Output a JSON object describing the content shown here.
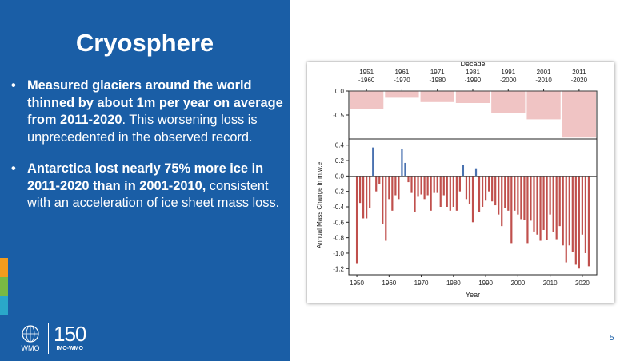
{
  "slide": {
    "title": "Cryosphere",
    "page_number": "5",
    "bullets": [
      {
        "bold": "Measured glaciers around the world thinned by about 1m per year on average from 2011-2020",
        "normal": ". This worsening loss is unprecedented in the observed record."
      },
      {
        "bold": "Antarctica lost nearly 75% more ice in 2011-2020 than in  2001-2010,",
        "normal": " consistent with an acceleration of ice sheet mass loss."
      }
    ],
    "logos": {
      "wmo": "WMO",
      "anniversary_number": "150",
      "anniversary_label": "IMO-WMO"
    },
    "colors": {
      "panel": "#1a5ea6",
      "strip": [
        "#f39c1c",
        "#79b943",
        "#2aa7c9"
      ]
    }
  },
  "chart_data": [
    {
      "type": "bar",
      "xlabel": "Decade",
      "categories": [
        "1951\n-1960",
        "1961\n-1970",
        "1971\n-1980",
        "1981\n-1990",
        "1991\n-2000",
        "2001\n-2010",
        "2011\n-2020"
      ],
      "values": [
        -0.37,
        -0.14,
        -0.23,
        -0.25,
        -0.46,
        -0.59,
        -0.97
      ],
      "ylim": [
        -1.0,
        0.0
      ],
      "yticks": [
        0.0,
        -0.5
      ],
      "color": "#f0c4c4"
    },
    {
      "type": "bar",
      "xlabel": "Year",
      "ylabel": "Annual Mass Change in m.w.e",
      "x": [
        1950,
        1951,
        1952,
        1953,
        1954,
        1955,
        1956,
        1957,
        1958,
        1959,
        1960,
        1961,
        1962,
        1963,
        1964,
        1965,
        1966,
        1967,
        1968,
        1969,
        1970,
        1971,
        1972,
        1973,
        1974,
        1975,
        1976,
        1977,
        1978,
        1979,
        1980,
        1981,
        1982,
        1983,
        1984,
        1985,
        1986,
        1987,
        1988,
        1989,
        1990,
        1991,
        1992,
        1993,
        1994,
        1995,
        1996,
        1997,
        1998,
        1999,
        2000,
        2001,
        2002,
        2003,
        2004,
        2005,
        2006,
        2007,
        2008,
        2009,
        2010,
        2011,
        2012,
        2013,
        2014,
        2015,
        2016,
        2017,
        2018,
        2019,
        2020,
        2021,
        2022
      ],
      "values": [
        -1.13,
        -0.35,
        -0.55,
        -0.55,
        -0.42,
        0.37,
        -0.2,
        -0.1,
        -0.62,
        -0.84,
        -0.3,
        -0.45,
        -0.25,
        -0.3,
        0.35,
        0.17,
        -0.08,
        -0.22,
        -0.47,
        -0.27,
        -0.24,
        -0.3,
        -0.25,
        -0.45,
        -0.22,
        -0.22,
        -0.4,
        -0.25,
        -0.4,
        -0.45,
        -0.4,
        -0.45,
        -0.2,
        0.14,
        -0.3,
        -0.36,
        -0.6,
        0.1,
        -0.47,
        -0.4,
        -0.32,
        -0.2,
        -0.33,
        -0.38,
        -0.5,
        -0.65,
        -0.42,
        -0.45,
        -0.87,
        -0.45,
        -0.5,
        -0.56,
        -0.57,
        -0.87,
        -0.58,
        -0.72,
        -0.76,
        -0.84,
        -0.7,
        -0.83,
        -0.5,
        -0.73,
        -0.82,
        -0.65,
        -0.9,
        -1.12,
        -0.9,
        -0.98,
        -1.15,
        -1.2,
        -0.76,
        -1.0,
        -1.17
      ],
      "ylim": [
        -1.28,
        0.48
      ],
      "yticks": [
        0.4,
        0.2,
        0.0,
        -0.2,
        -0.4,
        -0.6,
        -0.8,
        -1.0,
        -1.2
      ],
      "xticks": [
        1950,
        1960,
        1970,
        1980,
        1990,
        2000,
        2010,
        2020
      ],
      "colors": {
        "negative": "#c0504d",
        "positive": "#4a72b0"
      }
    }
  ]
}
